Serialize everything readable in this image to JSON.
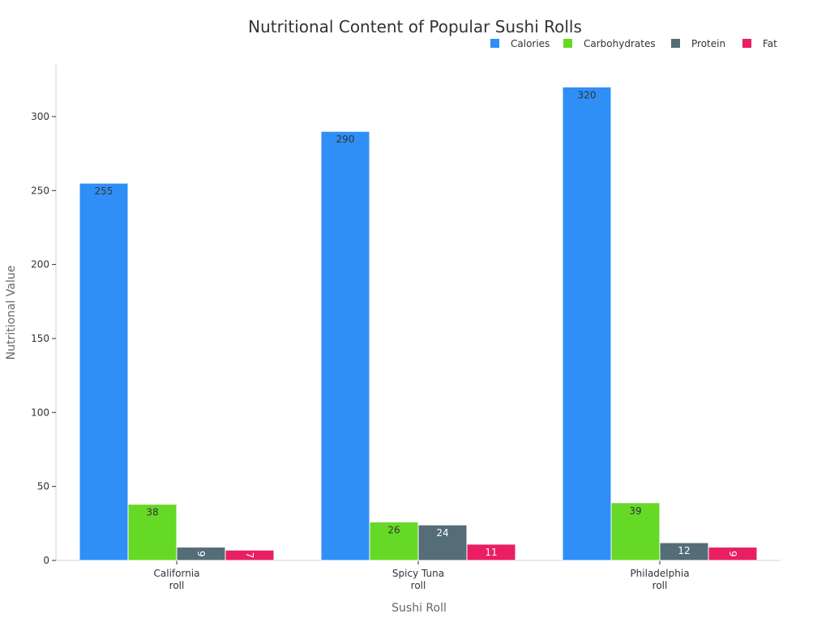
{
  "chart_data": {
    "type": "bar",
    "title": "Nutritional Content of Popular Sushi Rolls",
    "xlabel": "Sushi Roll",
    "ylabel": "Nutritional Value",
    "categories": [
      [
        "California",
        "roll"
      ],
      [
        "Spicy Tuna",
        "roll"
      ],
      [
        "Philadelphia",
        "roll"
      ]
    ],
    "series": [
      {
        "name": "Calories",
        "color": "#2f8ff6",
        "values": [
          255,
          290,
          320
        ]
      },
      {
        "name": "Carbohydrates",
        "color": "#66d927",
        "values": [
          38,
          26,
          39
        ]
      },
      {
        "name": "Protein",
        "color": "#546d77",
        "values": [
          9,
          24,
          12
        ]
      },
      {
        "name": "Fat",
        "color": "#e91e63",
        "values": [
          7,
          11,
          9
        ]
      }
    ],
    "ylim": [
      0,
      335
    ],
    "yticks": [
      0,
      50,
      100,
      150,
      200,
      250,
      300
    ],
    "grid": false,
    "legend": "top-right"
  }
}
